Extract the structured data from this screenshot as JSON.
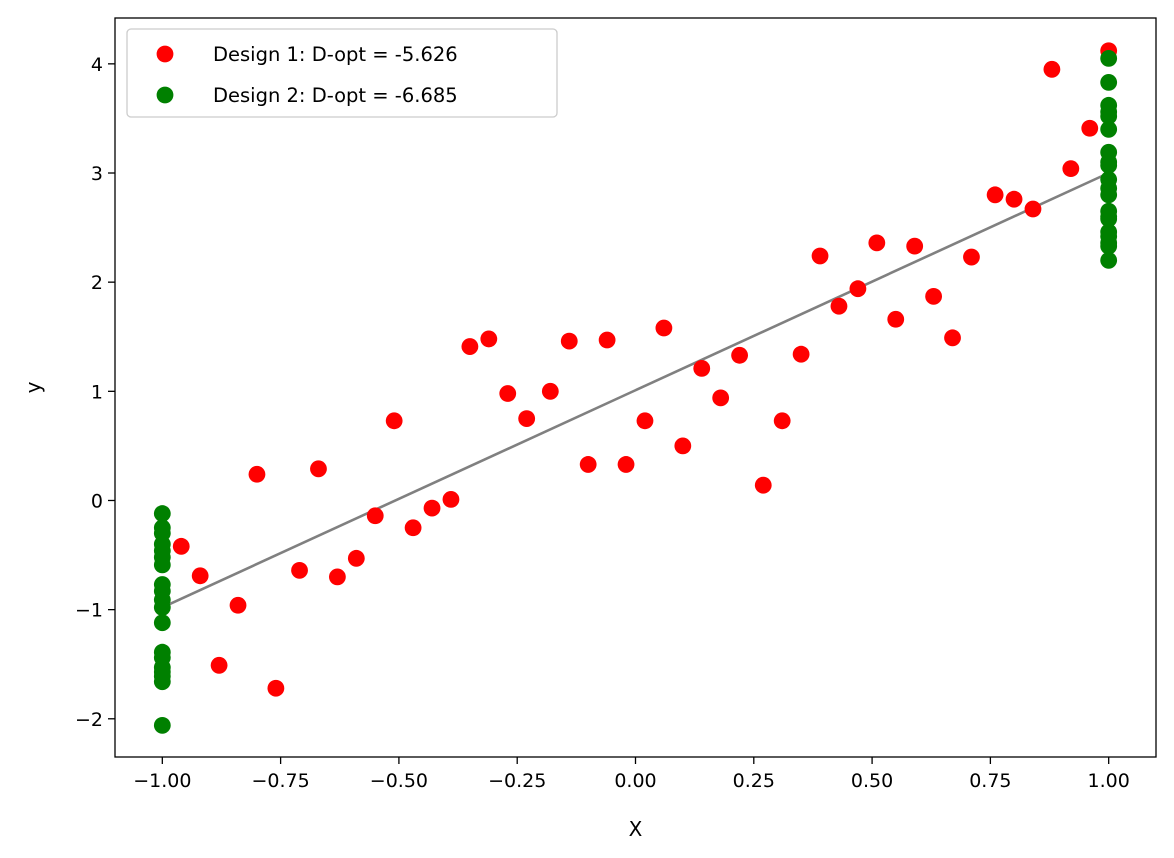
{
  "chart_data": {
    "type": "scatter",
    "title": "",
    "xlabel": "X",
    "ylabel": "y",
    "xlim": [
      -1.1,
      1.1
    ],
    "ylim": [
      -2.35,
      4.42
    ],
    "x_ticks": [
      -1.0,
      -0.75,
      -0.5,
      -0.25,
      0.0,
      0.25,
      0.5,
      0.75,
      1.0
    ],
    "x_tick_labels": [
      "−1.00",
      "−0.75",
      "−0.50",
      "−0.25",
      "0.00",
      "0.25",
      "0.50",
      "0.75",
      "1.00"
    ],
    "y_ticks": [
      -2,
      -1,
      0,
      1,
      2,
      3,
      4
    ],
    "y_tick_labels": [
      "−2",
      "−1",
      "0",
      "1",
      "2",
      "3",
      "4"
    ],
    "grid": false,
    "legend_placement": "top-left",
    "series": [
      {
        "name": "Design 1: D-opt = -5.626",
        "color": "#ff0000",
        "points": [
          [
            -0.96,
            -0.42
          ],
          [
            -0.92,
            -0.69
          ],
          [
            -0.88,
            -1.51
          ],
          [
            -0.84,
            -0.96
          ],
          [
            -0.8,
            0.24
          ],
          [
            -0.76,
            -1.72
          ],
          [
            -0.71,
            -0.64
          ],
          [
            -0.67,
            0.29
          ],
          [
            -0.63,
            -0.7
          ],
          [
            -0.59,
            -0.53
          ],
          [
            -0.55,
            -0.14
          ],
          [
            -0.51,
            0.73
          ],
          [
            -0.47,
            -0.25
          ],
          [
            -0.43,
            -0.07
          ],
          [
            -0.39,
            0.01
          ],
          [
            -0.35,
            1.41
          ],
          [
            -0.31,
            1.48
          ],
          [
            -0.27,
            0.98
          ],
          [
            -0.23,
            0.75
          ],
          [
            -0.18,
            1.0
          ],
          [
            -0.14,
            1.46
          ],
          [
            -0.1,
            0.33
          ],
          [
            -0.06,
            1.47
          ],
          [
            -0.02,
            0.33
          ],
          [
            0.02,
            0.73
          ],
          [
            0.06,
            1.58
          ],
          [
            0.1,
            0.5
          ],
          [
            0.14,
            1.21
          ],
          [
            0.18,
            0.94
          ],
          [
            0.22,
            1.33
          ],
          [
            0.27,
            0.14
          ],
          [
            0.31,
            0.73
          ],
          [
            0.35,
            1.34
          ],
          [
            0.39,
            2.24
          ],
          [
            0.43,
            1.78
          ],
          [
            0.47,
            1.94
          ],
          [
            0.51,
            2.36
          ],
          [
            0.55,
            1.66
          ],
          [
            0.59,
            2.33
          ],
          [
            0.63,
            1.87
          ],
          [
            0.67,
            1.49
          ],
          [
            0.71,
            2.23
          ],
          [
            0.76,
            2.8
          ],
          [
            0.8,
            2.76
          ],
          [
            0.84,
            2.67
          ],
          [
            0.88,
            3.95
          ],
          [
            0.92,
            3.04
          ],
          [
            0.96,
            3.41
          ],
          [
            1.0,
            4.12
          ]
        ]
      },
      {
        "name": "Design 2: D-opt = -6.685",
        "color": "#008000",
        "points": [
          [
            -1.0,
            -0.12
          ],
          [
            -1.0,
            -0.25
          ],
          [
            -1.0,
            -0.3
          ],
          [
            -1.0,
            -0.4
          ],
          [
            -1.0,
            -0.46
          ],
          [
            -1.0,
            -0.52
          ],
          [
            -1.0,
            -0.59
          ],
          [
            -1.0,
            -0.77
          ],
          [
            -1.0,
            -0.83
          ],
          [
            -1.0,
            -0.91
          ],
          [
            -1.0,
            -0.98
          ],
          [
            -1.0,
            -1.12
          ],
          [
            -1.0,
            -1.39
          ],
          [
            -1.0,
            -1.44
          ],
          [
            -1.0,
            -1.53
          ],
          [
            -1.0,
            -1.57
          ],
          [
            -1.0,
            -1.61
          ],
          [
            -1.0,
            -1.66
          ],
          [
            -1.0,
            -2.06
          ],
          [
            1.0,
            4.05
          ],
          [
            1.0,
            3.83
          ],
          [
            1.0,
            3.62
          ],
          [
            1.0,
            3.56
          ],
          [
            1.0,
            3.52
          ],
          [
            1.0,
            3.4
          ],
          [
            1.0,
            3.19
          ],
          [
            1.0,
            3.1
          ],
          [
            1.0,
            3.07
          ],
          [
            1.0,
            2.94
          ],
          [
            1.0,
            2.86
          ],
          [
            1.0,
            2.8
          ],
          [
            1.0,
            2.65
          ],
          [
            1.0,
            2.6
          ],
          [
            1.0,
            2.58
          ],
          [
            1.0,
            2.46
          ],
          [
            1.0,
            2.42
          ],
          [
            1.0,
            2.36
          ],
          [
            1.0,
            2.33
          ],
          [
            1.0,
            2.2
          ]
        ]
      }
    ],
    "line": {
      "color": "#808080",
      "points": [
        [
          -1.0,
          -0.98
        ],
        [
          1.0,
          3.0
        ]
      ]
    }
  }
}
